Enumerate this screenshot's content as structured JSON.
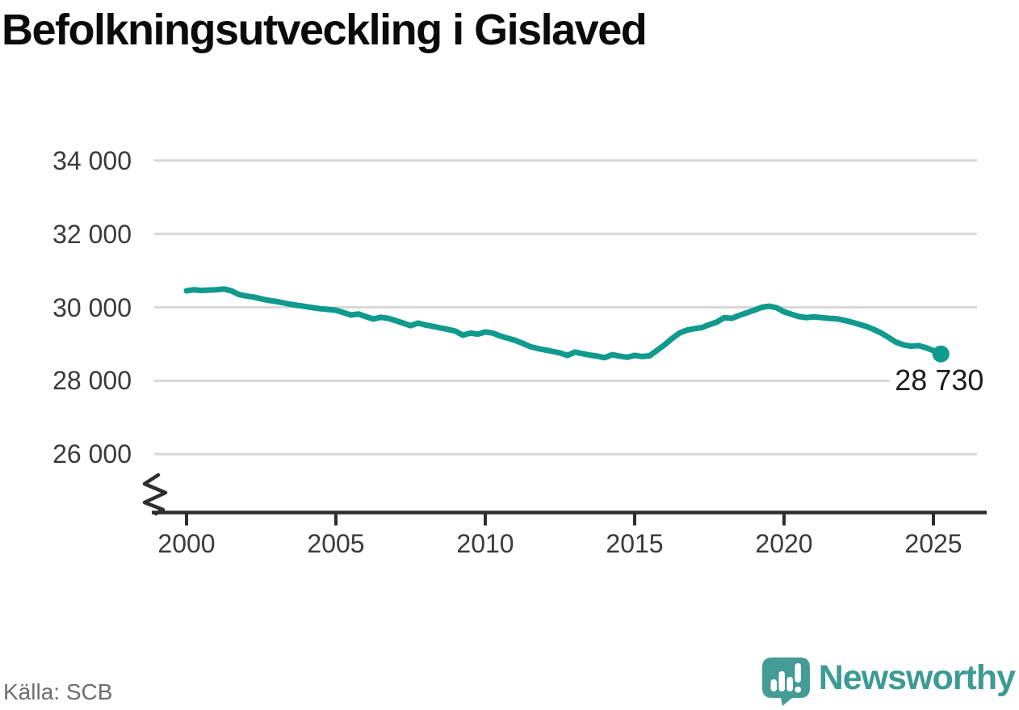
{
  "title": "Befolkningsutveckling i Gislaved",
  "source": "Källa: SCB",
  "brand": {
    "name": "Newsworthy",
    "logo_icon": "speech-bubble-bar-chart-exclamation-icon",
    "color": "#459c96"
  },
  "colors": {
    "line": "#109a8d",
    "grid": "#d9d9d9",
    "axis": "#2e2e2e",
    "tick_text": "#3a3a3a",
    "title_text": "#0b0b0b",
    "source_text": "#6e6e6e",
    "value_text": "#1c1c1c"
  },
  "chart_data": {
    "type": "line",
    "title": "Befolkningsutveckling i Gislaved",
    "series_name": "Befolkning i Gislaved",
    "grid": "horizontal",
    "axis_break": true,
    "legend": "none",
    "xlim": [
      1998.8,
      2026.8
    ],
    "ylim_display": [
      26000,
      34000
    ],
    "yticks": [
      26000,
      28000,
      30000,
      32000,
      34000
    ],
    "ytick_labels": [
      "26 000",
      "28 000",
      "30 000",
      "32 000",
      "34 000"
    ],
    "xticks": [
      2000,
      2005,
      2010,
      2015,
      2020,
      2025
    ],
    "xtick_labels": [
      "2000",
      "2005",
      "2010",
      "2015",
      "2020",
      "2025"
    ],
    "last_value": 28730,
    "last_value_label": "28 730",
    "x": [
      2000,
      2000.25,
      2000.5,
      2000.75,
      2001,
      2001.25,
      2001.5,
      2001.75,
      2002,
      2002.25,
      2002.5,
      2002.75,
      2003,
      2003.25,
      2003.5,
      2003.75,
      2004,
      2004.25,
      2004.5,
      2004.75,
      2005,
      2005.25,
      2005.5,
      2005.75,
      2006,
      2006.25,
      2006.5,
      2006.75,
      2007,
      2007.25,
      2007.5,
      2007.75,
      2008,
      2008.25,
      2008.5,
      2008.75,
      2009,
      2009.25,
      2009.5,
      2009.75,
      2010,
      2010.25,
      2010.5,
      2010.75,
      2011,
      2011.25,
      2011.5,
      2011.75,
      2012,
      2012.25,
      2012.5,
      2012.75,
      2013,
      2013.25,
      2013.5,
      2013.75,
      2014,
      2014.25,
      2014.5,
      2014.75,
      2015,
      2015.25,
      2015.5,
      2015.75,
      2016,
      2016.25,
      2016.5,
      2016.75,
      2017,
      2017.25,
      2017.5,
      2017.75,
      2018,
      2018.25,
      2018.5,
      2018.75,
      2019,
      2019.25,
      2019.5,
      2019.75,
      2020,
      2020.25,
      2020.5,
      2020.75,
      2021,
      2021.25,
      2021.5,
      2021.75,
      2022,
      2022.25,
      2022.5,
      2022.75,
      2023,
      2023.25,
      2023.5,
      2023.75,
      2024,
      2024.25,
      2024.5,
      2024.75,
      2025,
      2025.25
    ],
    "values": [
      30450,
      30480,
      30460,
      30470,
      30480,
      30500,
      30450,
      30350,
      30310,
      30280,
      30230,
      30190,
      30160,
      30120,
      30080,
      30050,
      30020,
      29990,
      29960,
      29940,
      29920,
      29860,
      29790,
      29820,
      29750,
      29680,
      29730,
      29700,
      29640,
      29570,
      29500,
      29570,
      29520,
      29480,
      29440,
      29400,
      29350,
      29240,
      29300,
      29270,
      29330,
      29300,
      29220,
      29160,
      29100,
      29020,
      28930,
      28880,
      28840,
      28800,
      28760,
      28690,
      28780,
      28740,
      28700,
      28670,
      28630,
      28710,
      28670,
      28640,
      28690,
      28660,
      28680,
      28830,
      28980,
      29150,
      29300,
      29380,
      29420,
      29450,
      29530,
      29600,
      29720,
      29700,
      29780,
      29850,
      29920,
      30000,
      30030,
      29990,
      29880,
      29810,
      29750,
      29720,
      29740,
      29720,
      29700,
      29690,
      29650,
      29600,
      29540,
      29480,
      29400,
      29300,
      29180,
      29050,
      28980,
      28940,
      28960,
      28900,
      28820,
      28730
    ]
  }
}
